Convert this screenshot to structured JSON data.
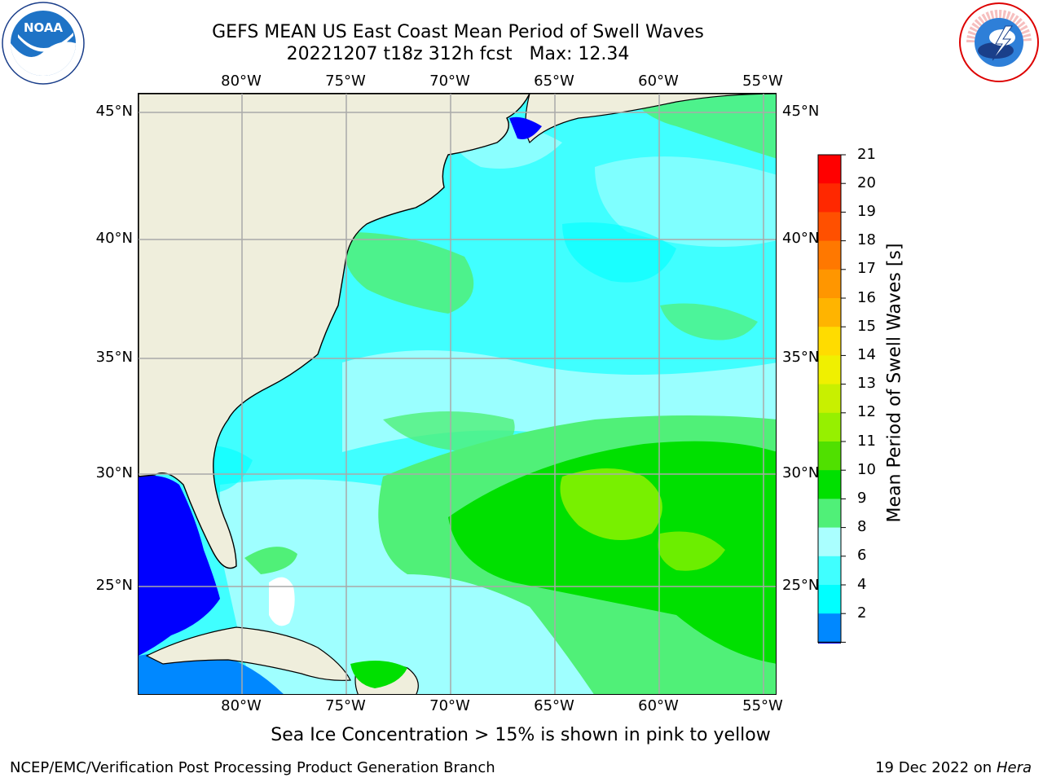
{
  "header": {
    "title_line1": "GEFS MEAN US East Coast Mean Period of Swell Waves",
    "title_line2": "20221207 t18z 312h fcst   Max: 12.34"
  },
  "map": {
    "lon_ticks": [
      "80°W",
      "75°W",
      "70°W",
      "65°W",
      "60°W",
      "55°W"
    ],
    "lat_ticks": [
      "45°N",
      "40°N",
      "35°N",
      "30°N",
      "25°N"
    ],
    "land_color": "#efeedc",
    "gridline_color": "#a9a9a9"
  },
  "colorbar": {
    "label": "Mean Period of Swell Waves [s]",
    "ticks": [
      "21",
      "20",
      "19",
      "18",
      "17",
      "16",
      "15",
      "14",
      "13",
      "12",
      "11",
      "10",
      "9",
      "8",
      "6",
      "4",
      "2"
    ],
    "colors": [
      "#ff0000",
      "#ff2800",
      "#ff5000",
      "#ff7800",
      "#ff9600",
      "#ffb400",
      "#ffdc00",
      "#f0f000",
      "#c8f000",
      "#96f000",
      "#50e000",
      "#00e000",
      "#50f078",
      "#aaffff",
      "#40ffff",
      "#00ffff",
      "#0088ff",
      "#0000ff"
    ]
  },
  "notes": {
    "sea_ice": "Sea Ice Concentration > 15% is shown in pink to yellow"
  },
  "footer": {
    "left": "NCEP/EMC/Verification Post Processing Product Generation Branch",
    "date": "19 Dec 2022 on",
    "machine": "Hera"
  },
  "logos": {
    "left": "noaa-logo",
    "right": "nws-logo",
    "nws_text": "NATIONAL WEATHER SERVICE"
  }
}
